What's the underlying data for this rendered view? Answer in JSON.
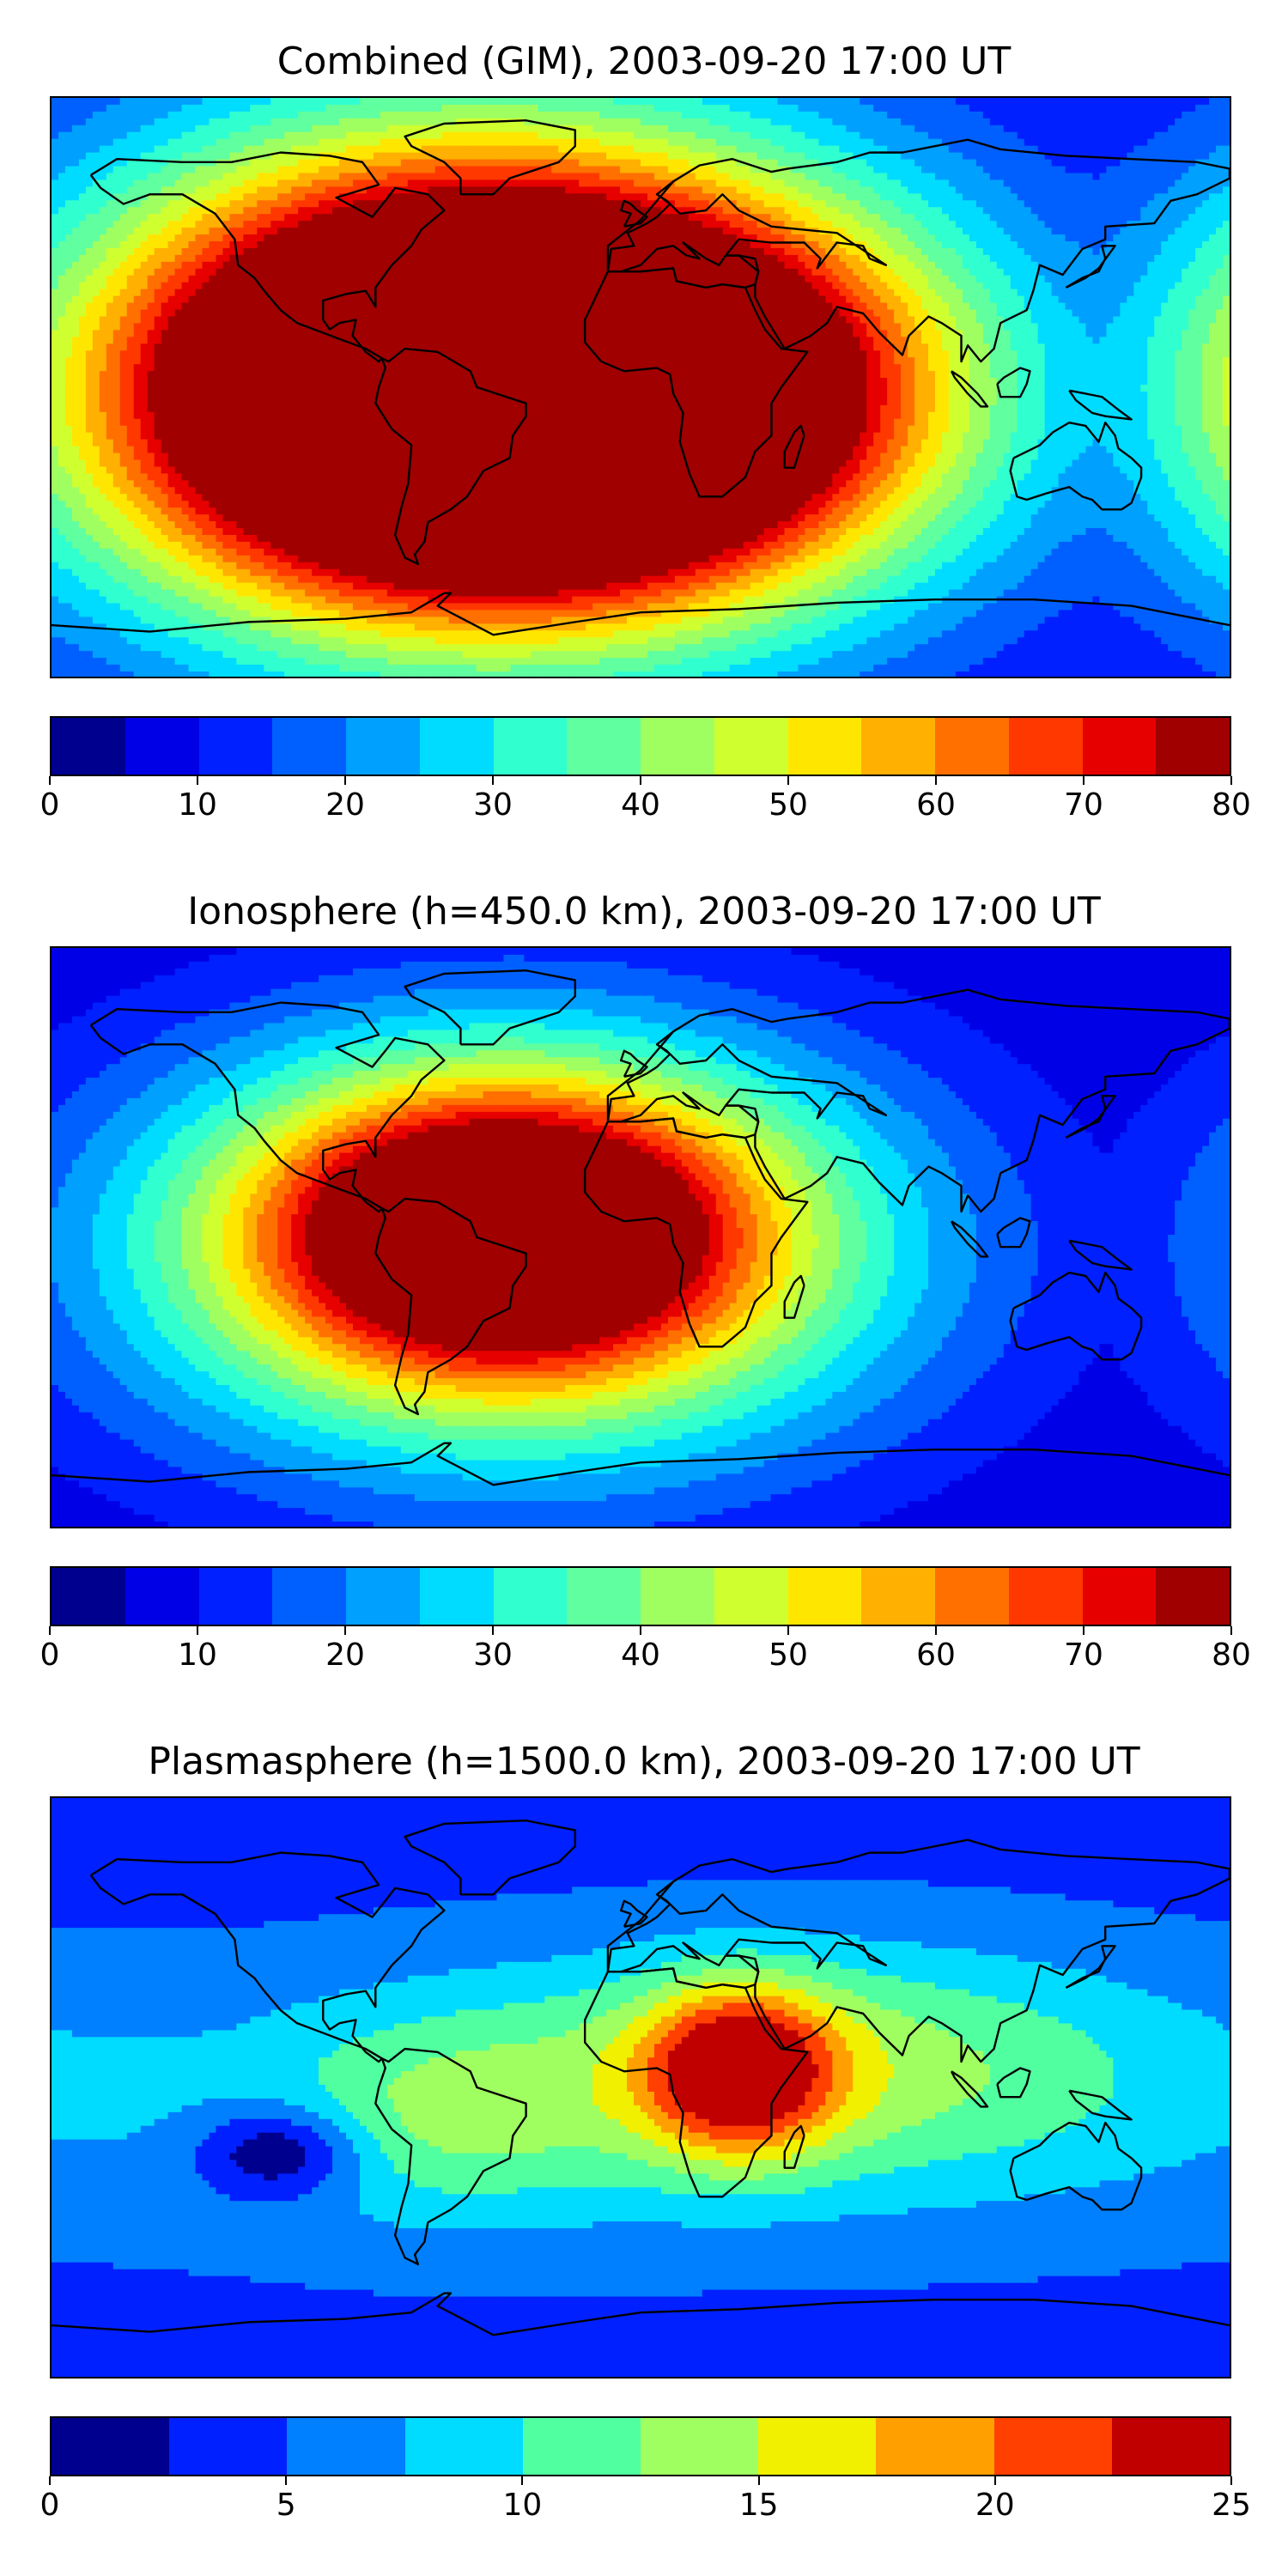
{
  "chart_data": [
    {
      "type": "heatmap",
      "title": "Combined (GIM), 2003-09-20 17:00 UT",
      "colorbar": {
        "ticks": [
          "0",
          "10",
          "20",
          "30",
          "40",
          "50",
          "60",
          "70",
          "80"
        ],
        "levels": [
          0,
          5,
          10,
          15,
          20,
          25,
          30,
          35,
          40,
          45,
          50,
          55,
          60,
          65,
          70,
          75,
          80
        ],
        "colors": [
          "#00008f",
          "#0000e6",
          "#0020ff",
          "#0060ff",
          "#00a0ff",
          "#00dcff",
          "#30ffd0",
          "#60ff9f",
          "#a0ff60",
          "#d0ff30",
          "#ffe600",
          "#ffb000",
          "#ff7000",
          "#ff3800",
          "#e60000",
          "#a00000"
        ]
      },
      "field": {
        "background_value": 7,
        "features": [
          {
            "lon": -52,
            "lat": 2,
            "value": 72,
            "sx": 75,
            "sy": 52
          },
          {
            "lon": -28,
            "lat": -6,
            "value": 66,
            "sx": 70,
            "sy": 35
          },
          {
            "lon": -40,
            "lat": 0,
            "value": 58,
            "sx": 100,
            "sy": 55
          },
          {
            "lon": 55,
            "lat": 25,
            "value": 9,
            "sx": 40,
            "sy": 25
          }
        ]
      }
    },
    {
      "type": "heatmap",
      "title": "Ionosphere  (h=450.0 km), 2003-09-20 17:00 UT",
      "colorbar": {
        "ticks": [
          "0",
          "10",
          "20",
          "30",
          "40",
          "50",
          "60",
          "70",
          "80"
        ],
        "levels": [
          0,
          5,
          10,
          15,
          20,
          25,
          30,
          35,
          40,
          45,
          50,
          55,
          60,
          65,
          70,
          75,
          80
        ],
        "colors": [
          "#00008f",
          "#0000e6",
          "#0020ff",
          "#0060ff",
          "#00a0ff",
          "#00dcff",
          "#30ffd0",
          "#60ff9f",
          "#a0ff60",
          "#d0ff30",
          "#ffe600",
          "#ffb000",
          "#ff7000",
          "#ff3800",
          "#e60000",
          "#a00000"
        ]
      },
      "field": {
        "background_value": 4,
        "features": [
          {
            "lon": -42,
            "lat": 2,
            "value": 70,
            "sx": 50,
            "sy": 30
          },
          {
            "lon": -38,
            "lat": -4,
            "value": 55,
            "sx": 90,
            "sy": 50
          }
        ]
      }
    },
    {
      "type": "heatmap",
      "title": "Plasmasphere (h=1500.0 km), 2003-09-20 17:00 UT",
      "colorbar": {
        "ticks": [
          "0",
          "5",
          "10",
          "15",
          "20",
          "25"
        ],
        "levels": [
          0,
          2.5,
          5,
          7.5,
          10,
          12.5,
          15,
          17.5,
          20,
          22.5,
          25
        ],
        "colors": [
          "#00008f",
          "#0020ff",
          "#0080ff",
          "#00dcff",
          "#50ffa0",
          "#a0ff60",
          "#f0f000",
          "#ffa000",
          "#ff4000",
          "#c00000"
        ]
      },
      "field": {
        "background_value": 4,
        "features": [
          {
            "lon": 30,
            "lat": 5,
            "value": 20,
            "sx": 20,
            "sy": 18
          },
          {
            "lon": 55,
            "lat": 10,
            "value": 10,
            "sx": 70,
            "sy": 25
          },
          {
            "lon": 0,
            "lat": -5,
            "value": 9,
            "sx": 180,
            "sy": 32
          },
          {
            "lon": -60,
            "lat": -10,
            "value": 8,
            "sx": 35,
            "sy": 22
          },
          {
            "lon": -110,
            "lat": -20,
            "value": -4,
            "sx": 18,
            "sy": 10
          }
        ]
      }
    }
  ]
}
